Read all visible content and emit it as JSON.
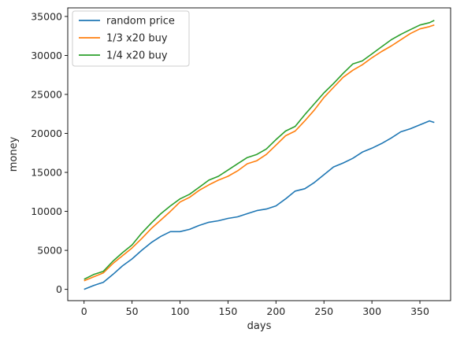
{
  "chart_data": {
    "type": "line",
    "title": "",
    "xlabel": "days",
    "ylabel": "money",
    "xlim": [
      -17,
      382
    ],
    "ylim": [
      -1450,
      36100
    ],
    "xticks": [
      0,
      50,
      100,
      150,
      200,
      250,
      300,
      350
    ],
    "yticks": [
      0,
      5000,
      10000,
      15000,
      20000,
      25000,
      30000,
      35000
    ],
    "grid": false,
    "legend_position": "top-left",
    "series": [
      {
        "name": "random price",
        "color": "#1f77b4",
        "x": [
          0,
          10,
          20,
          30,
          40,
          50,
          60,
          70,
          80,
          90,
          100,
          110,
          120,
          130,
          140,
          150,
          160,
          170,
          180,
          190,
          200,
          210,
          220,
          230,
          240,
          250,
          260,
          270,
          280,
          290,
          300,
          310,
          320,
          330,
          340,
          350,
          360,
          365
        ],
        "values": [
          0,
          500,
          900,
          1900,
          3000,
          3900,
          5000,
          6000,
          6800,
          7400,
          7400,
          7700,
          8200,
          8600,
          8800,
          9100,
          9300,
          9700,
          10100,
          10300,
          10700,
          11600,
          12600,
          12900,
          13700,
          14700,
          15700,
          16200,
          16800,
          17600,
          18100,
          18700,
          19400,
          20200,
          20600,
          21100,
          21600,
          21400
        ]
      },
      {
        "name": "1/3 x20 buy",
        "color": "#ff7f0e",
        "x": [
          0,
          10,
          20,
          30,
          40,
          50,
          60,
          70,
          80,
          90,
          100,
          110,
          120,
          130,
          140,
          150,
          160,
          170,
          180,
          190,
          200,
          210,
          220,
          230,
          240,
          250,
          260,
          270,
          280,
          290,
          300,
          310,
          320,
          330,
          340,
          350,
          360,
          365
        ],
        "values": [
          1100,
          1600,
          2100,
          3300,
          4300,
          5300,
          6500,
          7800,
          8900,
          10000,
          11200,
          11800,
          12700,
          13400,
          14000,
          14500,
          15200,
          16100,
          16500,
          17300,
          18500,
          19700,
          20300,
          21600,
          23000,
          24600,
          25900,
          27200,
          28100,
          28800,
          29700,
          30500,
          31200,
          32000,
          32800,
          33400,
          33700,
          33900
        ]
      },
      {
        "name": "1/4 x20 buy",
        "color": "#2ca02c",
        "x": [
          0,
          10,
          20,
          30,
          40,
          50,
          60,
          70,
          80,
          90,
          100,
          110,
          120,
          130,
          140,
          150,
          160,
          170,
          180,
          190,
          200,
          210,
          220,
          230,
          240,
          250,
          260,
          270,
          280,
          290,
          300,
          310,
          320,
          330,
          340,
          350,
          360,
          365
        ],
        "values": [
          1300,
          1900,
          2300,
          3600,
          4700,
          5700,
          7200,
          8500,
          9700,
          10700,
          11600,
          12200,
          13100,
          14000,
          14500,
          15300,
          16100,
          16900,
          17300,
          18000,
          19200,
          20300,
          20900,
          22400,
          23800,
          25200,
          26400,
          27700,
          28900,
          29300,
          30200,
          31100,
          32000,
          32700,
          33300,
          33900,
          34200,
          34500
        ]
      }
    ]
  }
}
